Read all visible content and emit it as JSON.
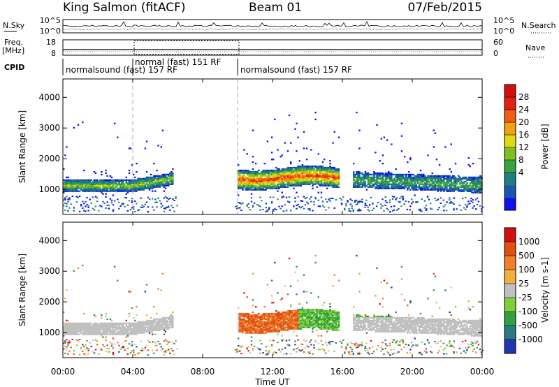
{
  "header": {
    "station": "King Salmon (fitACF)",
    "beam": "Beam 01",
    "date": "07/Feb/2015"
  },
  "chart_data": [
    {
      "type": "line",
      "panel": "nsky-nsearch",
      "left_label": "N.Sky",
      "right_label": "N.Search",
      "left_ticks": [
        "10^5",
        "10^0"
      ],
      "right_ticks": [
        "10^5",
        "10^0"
      ]
    },
    {
      "type": "line",
      "panel": "freq-nave",
      "left_label": "Freq.",
      "left_unit": "[MHz]",
      "right_label": "Nave",
      "left_ticks": [
        18,
        8
      ],
      "right_ticks": [
        60,
        0
      ]
    },
    {
      "type": "table",
      "panel": "cpid",
      "label": "CPID",
      "segments": [
        {
          "start": 0,
          "end": 4.0,
          "label": "normalsound (fast) 157 RF"
        },
        {
          "start": 4.0,
          "end": 10.0,
          "label": "normal (fast) 151 RF"
        },
        {
          "start": 10.0,
          "end": 24.0,
          "label": "normalsound (fast) 157 RF"
        }
      ]
    },
    {
      "type": "heatmap",
      "panel": "power",
      "ylabel": "Slant Range [km]",
      "yticks": [
        1000,
        2000,
        3000,
        4000
      ],
      "ylim": [
        180,
        4600
      ],
      "colorbar_label": "Power [dB]",
      "colorbar_ticks": [
        28,
        24,
        20,
        16,
        12,
        8,
        4
      ],
      "colorbar_colors": [
        "#1010ee",
        "#1a54b0",
        "#1f7f80",
        "#3aa040",
        "#80c020",
        "#dcdc10",
        "#f0a010",
        "#f06010",
        "#e02010",
        "#d01010"
      ]
    },
    {
      "type": "heatmap",
      "panel": "velocity",
      "ylabel": "Slant Range [km]",
      "yticks": [
        1000,
        2000,
        3000,
        4000
      ],
      "ylim": [
        180,
        4600
      ],
      "colorbar_label": "Velocity [m s-1]",
      "colorbar_ticks": [
        1000,
        500,
        100,
        25,
        -25,
        -100,
        -500,
        -1000
      ],
      "colorbar_colors": [
        "#1f36b0",
        "#2a7a80",
        "#30a040",
        "#7fcf3a",
        "#c0c0c0",
        "#f0b040",
        "#f08030",
        "#e05010",
        "#d01010"
      ]
    }
  ],
  "xaxis": {
    "label": "Time UT",
    "ticks": [
      "00:00",
      "04:00",
      "08:00",
      "12:00",
      "16:00",
      "20:00",
      "00:00"
    ]
  }
}
